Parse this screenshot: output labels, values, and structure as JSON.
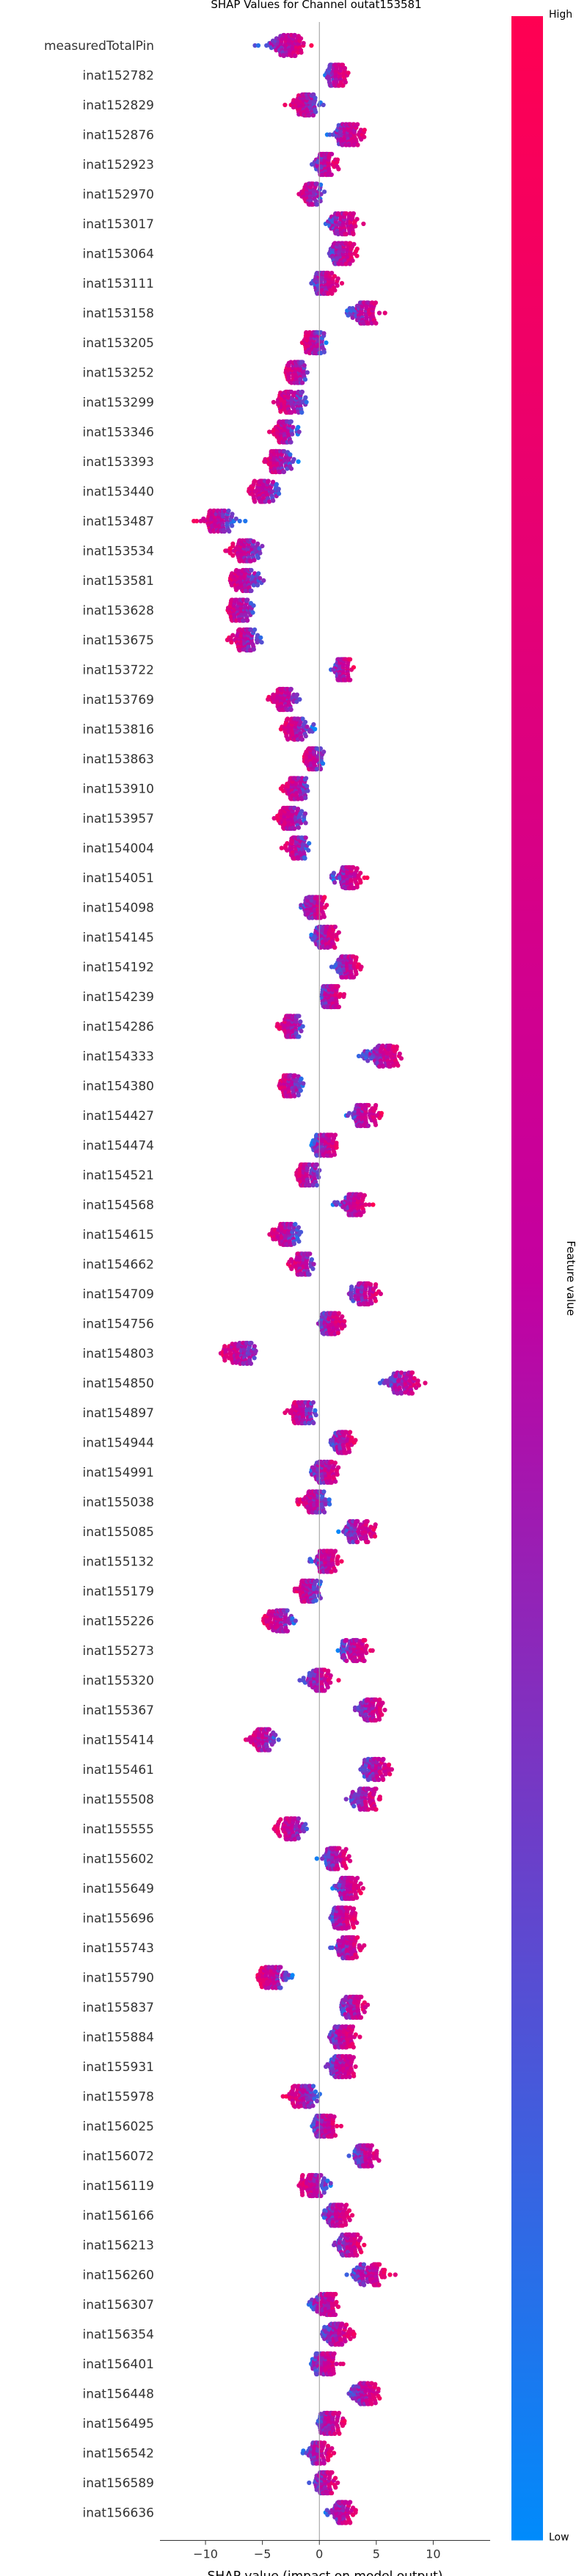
{
  "chart_data": {
    "type": "scatter",
    "subtype": "shap-beeswarm",
    "title": "SHAP Values for Channel outat153581",
    "xlabel": "SHAP value (impact on model output)",
    "xlim": [
      -14,
      15
    ],
    "xticks": [
      -10,
      -5,
      0,
      5,
      10
    ],
    "grid": false,
    "legend": "none",
    "colorbar": {
      "label": "Feature value",
      "high_label": "High",
      "low_label": "Low",
      "high_color": "#ff0052",
      "low_color": "#008bfb",
      "position": "right"
    },
    "features": [
      {
        "name": "measuredTotalPin",
        "center": -3,
        "spread": 3.2,
        "neg_high": false
      },
      {
        "name": "inat152782",
        "center": 1.5,
        "spread": 1.4,
        "neg_high": false
      },
      {
        "name": "inat152829",
        "center": -1.2,
        "spread": 2.0,
        "neg_high": true
      },
      {
        "name": "inat152876",
        "center": 2.5,
        "spread": 2.2,
        "neg_high": false
      },
      {
        "name": "inat152923",
        "center": 0.5,
        "spread": 1.6,
        "neg_high": false
      },
      {
        "name": "inat152970",
        "center": -0.8,
        "spread": 1.6,
        "neg_high": true
      },
      {
        "name": "inat153017",
        "center": 2.0,
        "spread": 2.2,
        "neg_high": false
      },
      {
        "name": "inat153064",
        "center": 2.0,
        "spread": 1.8,
        "neg_high": false
      },
      {
        "name": "inat153111",
        "center": 0.5,
        "spread": 1.6,
        "neg_high": false
      },
      {
        "name": "inat153158",
        "center": 4.0,
        "spread": 2.0,
        "neg_high": false
      },
      {
        "name": "inat153205",
        "center": -0.5,
        "spread": 1.6,
        "neg_high": true
      },
      {
        "name": "inat153252",
        "center": -2.0,
        "spread": 1.6,
        "neg_high": true
      },
      {
        "name": "inat153299",
        "center": -2.5,
        "spread": 2.0,
        "neg_high": true
      },
      {
        "name": "inat153346",
        "center": -3.0,
        "spread": 1.6,
        "neg_high": true
      },
      {
        "name": "inat153393",
        "center": -3.5,
        "spread": 1.8,
        "neg_high": true
      },
      {
        "name": "inat153440",
        "center": -4.8,
        "spread": 2.2,
        "neg_high": true
      },
      {
        "name": "inat153487",
        "center": -9.0,
        "spread": 2.6,
        "neg_high": true
      },
      {
        "name": "inat153534",
        "center": -6.5,
        "spread": 2.2,
        "neg_high": true
      },
      {
        "name": "inat153581",
        "center": -6.5,
        "spread": 2.2,
        "neg_high": true
      },
      {
        "name": "inat153628",
        "center": -7.0,
        "spread": 2.0,
        "neg_high": true
      },
      {
        "name": "inat153675",
        "center": -6.5,
        "spread": 2.0,
        "neg_high": true
      },
      {
        "name": "inat153722",
        "center": 2.0,
        "spread": 1.4,
        "neg_high": false
      },
      {
        "name": "inat153769",
        "center": -3.0,
        "spread": 2.0,
        "neg_high": true
      },
      {
        "name": "inat153816",
        "center": -2.0,
        "spread": 1.8,
        "neg_high": true
      },
      {
        "name": "inat153863",
        "center": -0.5,
        "spread": 1.4,
        "neg_high": true
      },
      {
        "name": "inat153910",
        "center": -2.0,
        "spread": 1.8,
        "neg_high": true
      },
      {
        "name": "inat153957",
        "center": -2.5,
        "spread": 2.0,
        "neg_high": true
      },
      {
        "name": "inat154004",
        "center": -2.0,
        "spread": 1.6,
        "neg_high": true
      },
      {
        "name": "inat154051",
        "center": 2.5,
        "spread": 2.0,
        "neg_high": false
      },
      {
        "name": "inat154098",
        "center": -0.5,
        "spread": 1.6,
        "neg_high": false
      },
      {
        "name": "inat154145",
        "center": 0.5,
        "spread": 1.8,
        "neg_high": false
      },
      {
        "name": "inat154192",
        "center": 2.5,
        "spread": 1.8,
        "neg_high": false
      },
      {
        "name": "inat154239",
        "center": 1.0,
        "spread": 1.6,
        "neg_high": false
      },
      {
        "name": "inat154286",
        "center": -2.5,
        "spread": 1.6,
        "neg_high": true
      },
      {
        "name": "inat154333",
        "center": 5.5,
        "spread": 2.6,
        "neg_high": false
      },
      {
        "name": "inat154380",
        "center": -2.5,
        "spread": 1.8,
        "neg_high": true
      },
      {
        "name": "inat154427",
        "center": 4.0,
        "spread": 2.0,
        "neg_high": false
      },
      {
        "name": "inat154474",
        "center": 0.5,
        "spread": 1.6,
        "neg_high": false
      },
      {
        "name": "inat154521",
        "center": -1.0,
        "spread": 1.6,
        "neg_high": true
      },
      {
        "name": "inat154568",
        "center": 3.0,
        "spread": 2.0,
        "neg_high": false
      },
      {
        "name": "inat154615",
        "center": -3.0,
        "spread": 2.0,
        "neg_high": true
      },
      {
        "name": "inat154662",
        "center": -1.5,
        "spread": 1.8,
        "neg_high": true
      },
      {
        "name": "inat154709",
        "center": 4.0,
        "spread": 2.2,
        "neg_high": false
      },
      {
        "name": "inat154756",
        "center": 1.0,
        "spread": 1.8,
        "neg_high": false
      },
      {
        "name": "inat154803",
        "center": -7.0,
        "spread": 2.6,
        "neg_high": true
      },
      {
        "name": "inat154850",
        "center": 7.5,
        "spread": 2.8,
        "neg_high": false
      },
      {
        "name": "inat154897",
        "center": -1.5,
        "spread": 1.8,
        "neg_high": true
      },
      {
        "name": "inat154944",
        "center": 2.0,
        "spread": 1.6,
        "neg_high": false
      },
      {
        "name": "inat154991",
        "center": 0.5,
        "spread": 2.0,
        "neg_high": false
      },
      {
        "name": "inat155038",
        "center": -0.5,
        "spread": 2.0,
        "neg_high": true
      },
      {
        "name": "inat155085",
        "center": 3.5,
        "spread": 2.2,
        "neg_high": false
      },
      {
        "name": "inat155132",
        "center": 0.5,
        "spread": 2.0,
        "neg_high": false
      },
      {
        "name": "inat155179",
        "center": -1.0,
        "spread": 1.6,
        "neg_high": true
      },
      {
        "name": "inat155226",
        "center": -3.5,
        "spread": 2.0,
        "neg_high": true
      },
      {
        "name": "inat155273",
        "center": 3.0,
        "spread": 2.0,
        "neg_high": false
      },
      {
        "name": "inat155320",
        "center": 0.0,
        "spread": 2.0,
        "neg_high": false
      },
      {
        "name": "inat155367",
        "center": 4.5,
        "spread": 2.0,
        "neg_high": false
      },
      {
        "name": "inat155414",
        "center": -5.0,
        "spread": 2.0,
        "neg_high": true
      },
      {
        "name": "inat155461",
        "center": 5.0,
        "spread": 2.0,
        "neg_high": false
      },
      {
        "name": "inat155508",
        "center": 4.0,
        "spread": 2.2,
        "neg_high": false
      },
      {
        "name": "inat155555",
        "center": -2.5,
        "spread": 2.0,
        "neg_high": true
      },
      {
        "name": "inat155602",
        "center": 1.5,
        "spread": 1.8,
        "neg_high": false
      },
      {
        "name": "inat155649",
        "center": 2.5,
        "spread": 1.8,
        "neg_high": false
      },
      {
        "name": "inat155696",
        "center": 2.0,
        "spread": 1.8,
        "neg_high": false
      },
      {
        "name": "inat155743",
        "center": 2.5,
        "spread": 1.8,
        "neg_high": false
      },
      {
        "name": "inat155790",
        "center": -4.0,
        "spread": 2.2,
        "neg_high": true
      },
      {
        "name": "inat155837",
        "center": 3.0,
        "spread": 1.8,
        "neg_high": false
      },
      {
        "name": "inat155884",
        "center": 2.0,
        "spread": 1.8,
        "neg_high": false
      },
      {
        "name": "inat155931",
        "center": 2.0,
        "spread": 2.0,
        "neg_high": false
      },
      {
        "name": "inat155978",
        "center": -1.5,
        "spread": 2.0,
        "neg_high": true
      },
      {
        "name": "inat156025",
        "center": 0.5,
        "spread": 1.8,
        "neg_high": false
      },
      {
        "name": "inat156072",
        "center": 4.0,
        "spread": 1.8,
        "neg_high": false
      },
      {
        "name": "inat156119",
        "center": -0.5,
        "spread": 2.0,
        "neg_high": true
      },
      {
        "name": "inat156166",
        "center": 1.5,
        "spread": 1.6,
        "neg_high": false
      },
      {
        "name": "inat156213",
        "center": 2.5,
        "spread": 1.8,
        "neg_high": false
      },
      {
        "name": "inat156260",
        "center": 4.5,
        "spread": 2.4,
        "neg_high": false
      },
      {
        "name": "inat156307",
        "center": 0.5,
        "spread": 2.0,
        "neg_high": false
      },
      {
        "name": "inat156354",
        "center": 1.5,
        "spread": 1.8,
        "neg_high": false
      },
      {
        "name": "inat156401",
        "center": 0.5,
        "spread": 2.0,
        "neg_high": false
      },
      {
        "name": "inat156448",
        "center": 4.0,
        "spread": 2.2,
        "neg_high": false
      },
      {
        "name": "inat156495",
        "center": 1.0,
        "spread": 1.8,
        "neg_high": false
      },
      {
        "name": "inat156542",
        "center": 0.0,
        "spread": 1.8,
        "neg_high": false
      },
      {
        "name": "inat156589",
        "center": 0.5,
        "spread": 1.6,
        "neg_high": false
      },
      {
        "name": "inat156636",
        "center": 2.0,
        "spread": 1.8,
        "neg_high": false
      }
    ]
  }
}
